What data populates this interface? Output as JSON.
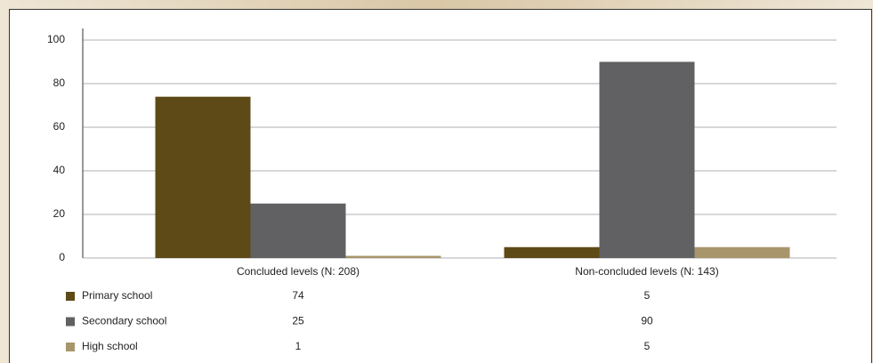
{
  "chart_data": {
    "type": "bar",
    "categories": [
      "Concluded levels (N: 208)",
      "Non-concluded levels (N: 143)"
    ],
    "series": [
      {
        "name": "Primary school",
        "color": "#5e4a16",
        "values": [
          74,
          5
        ]
      },
      {
        "name": "Secondary school",
        "color": "#616163",
        "values": [
          25,
          90
        ]
      },
      {
        "name": "High school",
        "color": "#a8956b",
        "values": [
          1,
          5
        ]
      }
    ],
    "ylim": [
      0,
      100
    ],
    "yticks": [
      0,
      20,
      40,
      60,
      80,
      100
    ],
    "grid": true
  }
}
